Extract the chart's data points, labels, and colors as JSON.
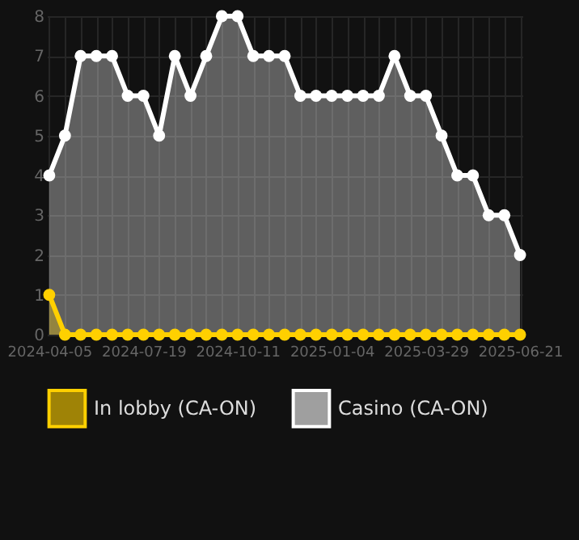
{
  "chart_data": {
    "type": "area",
    "categories": [
      "2024-04-05",
      null,
      null,
      null,
      null,
      null,
      "2024-07-19",
      null,
      null,
      null,
      null,
      null,
      "2024-10-11",
      null,
      null,
      null,
      null,
      null,
      "2025-01-04",
      null,
      null,
      null,
      null,
      null,
      "2025-03-29",
      null,
      null,
      null,
      null,
      null,
      "2025-06-21"
    ],
    "series": [
      {
        "name": "Casino (CA-ON)",
        "color": "#ffffff",
        "values": [
          4,
          5,
          7,
          7,
          7,
          6,
          6,
          5,
          7,
          6,
          7,
          8,
          8,
          7,
          7,
          7,
          6,
          6,
          6,
          6,
          6,
          6,
          7,
          6,
          6,
          5,
          4,
          4,
          3,
          3,
          2
        ]
      },
      {
        "name": "In lobby (CA-ON)",
        "color": "#ffd000",
        "values": [
          1,
          0,
          0,
          0,
          0,
          0,
          0,
          0,
          0,
          0,
          0,
          0,
          0,
          0,
          0,
          0,
          0,
          0,
          0,
          0,
          0,
          0,
          0,
          0,
          0,
          0,
          0,
          0,
          0,
          0,
          0
        ]
      }
    ],
    "ylim": [
      0,
      8
    ],
    "yticks": [
      0,
      1,
      2,
      3,
      4,
      5,
      6,
      7,
      8
    ],
    "grid": true,
    "legend": "bottom",
    "marker": "circle",
    "line_style": "solid"
  }
}
